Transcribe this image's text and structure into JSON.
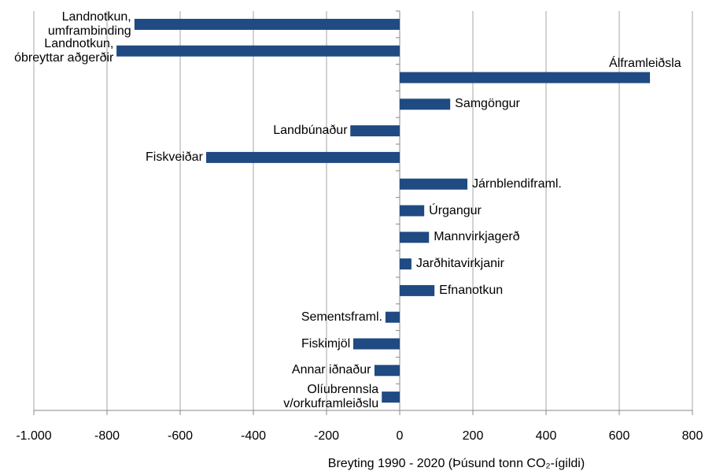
{
  "chart_data": {
    "type": "hbar",
    "x_label": "Breyting 1990 - 2020 (Þúsund tonn CO₂-ígildi)",
    "categories": [
      "Landnotkun,\numframbinding",
      "Landnotkun,\nóbreyttar aðgerðir",
      "Álframleiðsla",
      "Samgöngur",
      "Landbúnaður",
      "Fiskveiðar",
      "Járnblendiframl.",
      "Úrgangur",
      "Mannvirkjagerð",
      "Jarðhitavirkjanir",
      "Efnanotkun",
      "Sementsframl.",
      "Fiskimjöl",
      "Annar iðnaður",
      "Olíubrennsla\nv/orkuframleiðslu"
    ],
    "values": [
      -725,
      -774,
      684,
      138,
      -135,
      -529,
      185,
      67,
      80,
      32,
      95,
      -39,
      -127,
      -69,
      -49
    ],
    "color": "#1f4a82",
    "xlim": [
      -1000,
      800
    ],
    "xticks": [
      {
        "value": -1000,
        "label": "-1.000"
      },
      -800,
      -600,
      -400,
      -200,
      0,
      200,
      400,
      600,
      800
    ],
    "grid": true
  }
}
